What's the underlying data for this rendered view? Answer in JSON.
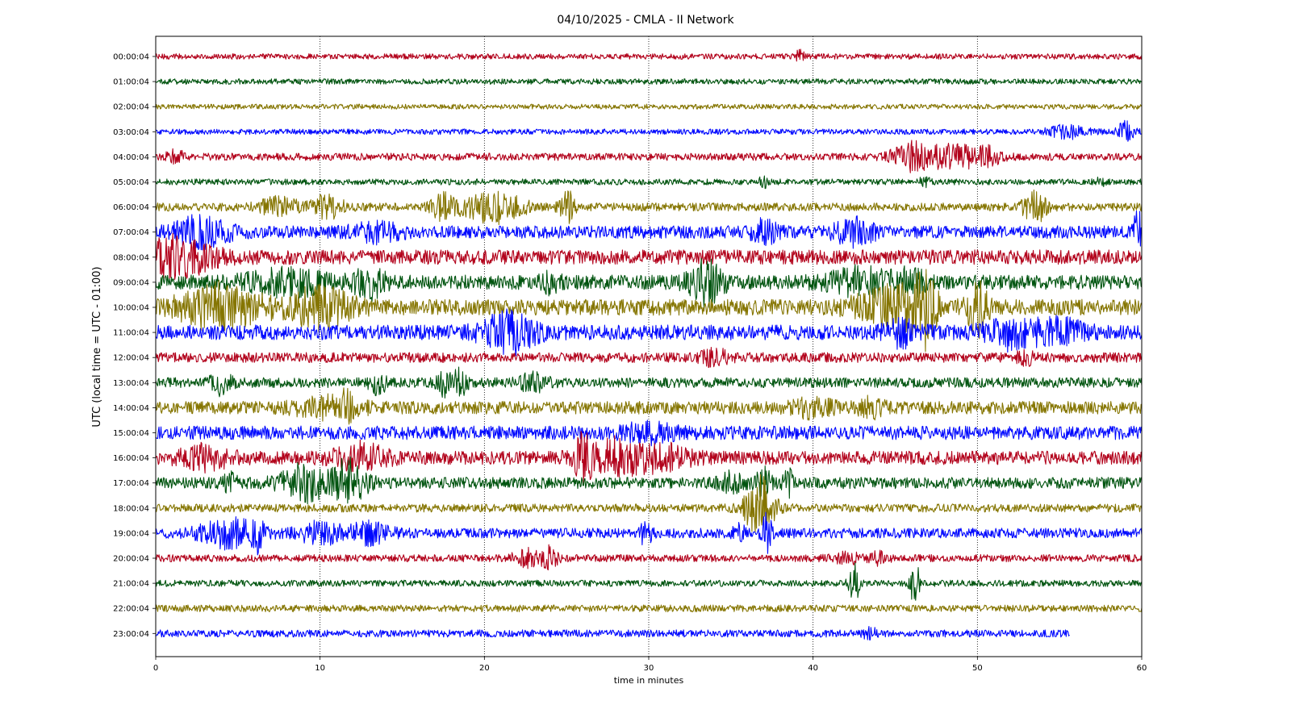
{
  "chart_data": {
    "type": "line",
    "title": "04/10/2025 - CMLA - II Network",
    "xlabel": "time in minutes",
    "ylabel": "UTC (local time = UTC - 01:00)",
    "xlim": [
      0,
      60
    ],
    "xticks": [
      "0",
      "10",
      "20",
      "30",
      "40",
      "50",
      "60"
    ],
    "grid": "vertical dotted lines at x ticks",
    "colors": [
      "#b2001a",
      "#00540f",
      "#857500",
      "#0008ff"
    ],
    "series": [
      {
        "label": "00:00:04",
        "noise": 0.12,
        "events": [
          {
            "t": 39.2,
            "a": 0.25,
            "w": 0.3
          }
        ]
      },
      {
        "label": "01:00:04",
        "noise": 0.12,
        "events": []
      },
      {
        "label": "02:00:04",
        "noise": 0.11,
        "events": []
      },
      {
        "label": "03:00:04",
        "noise": 0.12,
        "events": [
          {
            "t": 55.5,
            "a": 0.25,
            "w": 1.2
          },
          {
            "t": 59,
            "a": 0.4,
            "w": 0.5
          }
        ]
      },
      {
        "label": "04:00:04",
        "noise": 0.16,
        "events": [
          {
            "t": 1.2,
            "a": 0.25,
            "w": 0.5
          },
          {
            "t": 46,
            "a": 0.55,
            "w": 1.2
          },
          {
            "t": 48.5,
            "a": 0.45,
            "w": 1.5
          },
          {
            "t": 50.5,
            "a": 0.35,
            "w": 0.9
          }
        ]
      },
      {
        "label": "05:00:04",
        "noise": 0.13,
        "events": [
          {
            "t": 37,
            "a": 0.2,
            "w": 0.3
          },
          {
            "t": 46.8,
            "a": 0.2,
            "w": 0.3
          },
          {
            "t": 57.5,
            "a": 0.2,
            "w": 0.3
          }
        ]
      },
      {
        "label": "06:00:04",
        "noise": 0.18,
        "events": [
          {
            "t": 7.5,
            "a": 0.35,
            "w": 1.2
          },
          {
            "t": 10.5,
            "a": 0.45,
            "w": 1.0
          },
          {
            "t": 17.5,
            "a": 0.5,
            "w": 0.7
          },
          {
            "t": 20.5,
            "a": 0.65,
            "w": 1.8
          },
          {
            "t": 25,
            "a": 0.9,
            "w": 0.4
          },
          {
            "t": 53.5,
            "a": 0.65,
            "w": 0.7
          }
        ]
      },
      {
        "label": "07:00:04",
        "noise": 0.28,
        "events": [
          {
            "t": 2.8,
            "a": 0.6,
            "w": 1.6
          },
          {
            "t": 13.5,
            "a": 0.3,
            "w": 1.5
          },
          {
            "t": 37,
            "a": 0.4,
            "w": 0.8
          },
          {
            "t": 42.5,
            "a": 0.45,
            "w": 1.2
          },
          {
            "t": 59.8,
            "a": 0.9,
            "w": 0.3
          }
        ]
      },
      {
        "label": "08:00:04",
        "noise": 0.32,
        "events": [
          {
            "t": 1.2,
            "a": 0.75,
            "w": 2.2
          }
        ]
      },
      {
        "label": "09:00:04",
        "noise": 0.32,
        "events": [
          {
            "t": 8,
            "a": 0.45,
            "w": 2.5
          },
          {
            "t": 13,
            "a": 0.55,
            "w": 0.9
          },
          {
            "t": 24,
            "a": 0.4,
            "w": 0.5
          },
          {
            "t": 33.5,
            "a": 0.9,
            "w": 1.0
          },
          {
            "t": 43,
            "a": 0.5,
            "w": 2.0
          },
          {
            "t": 46,
            "a": 0.45,
            "w": 0.8
          }
        ]
      },
      {
        "label": "10:00:04",
        "noise": 0.35,
        "events": [
          {
            "t": 4,
            "a": 0.85,
            "w": 2.5
          },
          {
            "t": 10,
            "a": 0.75,
            "w": 1.8
          },
          {
            "t": 45,
            "a": 0.85,
            "w": 2.2
          },
          {
            "t": 46.8,
            "a": 1.3,
            "w": 0.6
          },
          {
            "t": 50,
            "a": 1.1,
            "w": 0.6
          }
        ]
      },
      {
        "label": "11:00:04",
        "noise": 0.33,
        "events": [
          {
            "t": 21.5,
            "a": 0.75,
            "w": 1.6
          },
          {
            "t": 45.5,
            "a": 0.5,
            "w": 1.0
          },
          {
            "t": 52,
            "a": 0.55,
            "w": 1.5
          },
          {
            "t": 55,
            "a": 0.45,
            "w": 1.5
          }
        ]
      },
      {
        "label": "12:00:04",
        "noise": 0.22,
        "events": [
          {
            "t": 34,
            "a": 0.3,
            "w": 0.8
          },
          {
            "t": 53,
            "a": 0.25,
            "w": 0.6
          }
        ]
      },
      {
        "label": "13:00:04",
        "noise": 0.22,
        "events": [
          {
            "t": 4,
            "a": 0.45,
            "w": 0.6
          },
          {
            "t": 13.5,
            "a": 0.45,
            "w": 0.5
          },
          {
            "t": 17.5,
            "a": 0.5,
            "w": 0.4
          },
          {
            "t": 18.5,
            "a": 0.6,
            "w": 0.4
          },
          {
            "t": 23,
            "a": 0.35,
            "w": 0.8
          }
        ]
      },
      {
        "label": "14:00:04",
        "noise": 0.28,
        "events": [
          {
            "t": 10.5,
            "a": 0.35,
            "w": 2.0
          },
          {
            "t": 11.5,
            "a": 0.5,
            "w": 0.4
          },
          {
            "t": 40,
            "a": 0.3,
            "w": 1.2
          },
          {
            "t": 43.5,
            "a": 0.3,
            "w": 0.8
          }
        ]
      },
      {
        "label": "15:00:04",
        "noise": 0.3,
        "events": [
          {
            "t": 30,
            "a": 0.3,
            "w": 1.5
          }
        ]
      },
      {
        "label": "16:00:04",
        "noise": 0.3,
        "events": [
          {
            "t": 3,
            "a": 0.4,
            "w": 1.5
          },
          {
            "t": 12.5,
            "a": 0.5,
            "w": 1.5
          },
          {
            "t": 26,
            "a": 0.75,
            "w": 0.5
          },
          {
            "t": 28,
            "a": 0.7,
            "w": 1.8
          },
          {
            "t": 31,
            "a": 0.4,
            "w": 1.5
          }
        ]
      },
      {
        "label": "17:00:04",
        "noise": 0.25,
        "events": [
          {
            "t": 4.5,
            "a": 0.35,
            "w": 0.5
          },
          {
            "t": 9,
            "a": 0.7,
            "w": 1.5
          },
          {
            "t": 11.8,
            "a": 1.0,
            "w": 1.0
          },
          {
            "t": 35,
            "a": 0.35,
            "w": 0.8
          },
          {
            "t": 37,
            "a": 0.65,
            "w": 0.4
          },
          {
            "t": 38.5,
            "a": 0.5,
            "w": 0.3
          }
        ]
      },
      {
        "label": "18:00:04",
        "noise": 0.18,
        "events": [
          {
            "t": 36.8,
            "a": 1.3,
            "w": 0.9
          }
        ]
      },
      {
        "label": "19:00:04",
        "noise": 0.22,
        "events": [
          {
            "t": 4.5,
            "a": 0.55,
            "w": 1.8
          },
          {
            "t": 6.2,
            "a": 0.6,
            "w": 0.3
          },
          {
            "t": 10,
            "a": 0.45,
            "w": 1.2
          },
          {
            "t": 13,
            "a": 0.4,
            "w": 1.2
          },
          {
            "t": 29.8,
            "a": 0.4,
            "w": 0.4
          },
          {
            "t": 35.5,
            "a": 0.3,
            "w": 0.4
          },
          {
            "t": 37.2,
            "a": 0.8,
            "w": 0.3
          }
        ]
      },
      {
        "label": "20:00:04",
        "noise": 0.16,
        "events": [
          {
            "t": 22.5,
            "a": 0.4,
            "w": 0.7
          },
          {
            "t": 24,
            "a": 0.45,
            "w": 0.5
          },
          {
            "t": 42,
            "a": 0.25,
            "w": 0.8
          },
          {
            "t": 44,
            "a": 0.25,
            "w": 0.5
          }
        ]
      },
      {
        "label": "21:00:04",
        "noise": 0.14,
        "events": [
          {
            "t": 42.5,
            "a": 0.9,
            "w": 0.3
          },
          {
            "t": 46.2,
            "a": 0.9,
            "w": 0.3
          }
        ]
      },
      {
        "label": "22:00:04",
        "noise": 0.15,
        "events": []
      },
      {
        "label": "23:00:04",
        "noise": 0.16,
        "events": [
          {
            "t": 43.5,
            "a": 0.2,
            "w": 0.5
          }
        ],
        "end": 55.6
      }
    ]
  }
}
